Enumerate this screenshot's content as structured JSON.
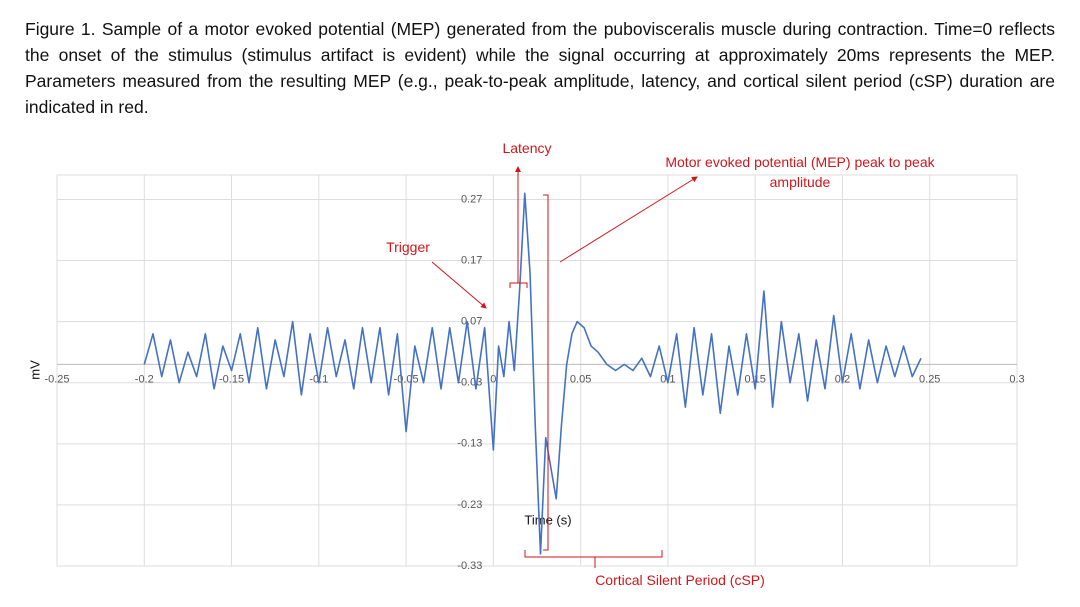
{
  "caption": "Figure 1. Sample of a motor evoked potential (MEP) generated from the pubovisceralis muscle during contraction. Time=0 reflects the onset of the stimulus (stimulus artifact is evident) while the signal occurring at approximately 20ms represents the MEP. Parameters measured from the resulting MEP (e.g., peak-to-peak amplitude, latency, and cortical silent period (cSP) duration are indicated in red.",
  "chart_data": {
    "type": "line",
    "x_label": "Time (s)",
    "y_label": "mV",
    "annotations": [
      "Latency",
      "Motor evoked potential (MEP) peak to peak amplitude",
      "Trigger",
      "Cortical Silent Period (cSP)"
    ],
    "color": "#4472c4",
    "grid": true,
    "xlim": [
      -0.25,
      0.3
    ],
    "xticks": [
      -0.25,
      -0.2,
      -0.15,
      -0.1,
      -0.05,
      0,
      0.05,
      0.1,
      0.15,
      0.2,
      0.25,
      0.3
    ],
    "ylim": [
      -0.33,
      0.31
    ],
    "yticks": [
      0.27,
      0.17,
      0.07,
      -0.03,
      -0.13,
      -0.23,
      -0.33
    ],
    "x": [
      -0.2,
      -0.195,
      -0.19,
      -0.185,
      -0.18,
      -0.175,
      -0.17,
      -0.165,
      -0.16,
      -0.155,
      -0.15,
      -0.145,
      -0.14,
      -0.135,
      -0.13,
      -0.125,
      -0.12,
      -0.115,
      -0.11,
      -0.105,
      -0.1,
      -0.095,
      -0.09,
      -0.085,
      -0.08,
      -0.075,
      -0.07,
      -0.065,
      -0.06,
      -0.055,
      -0.05,
      -0.045,
      -0.04,
      -0.035,
      -0.03,
      -0.025,
      -0.02,
      -0.015,
      -0.01,
      -0.005,
      0,
      0.003,
      0.006,
      0.009,
      0.012,
      0.015,
      0.018,
      0.021,
      0.024,
      0.027,
      0.03,
      0.033,
      0.036,
      0.039,
      0.042,
      0.045,
      0.048,
      0.052,
      0.056,
      0.06,
      0.065,
      0.07,
      0.075,
      0.08,
      0.085,
      0.09,
      0.095,
      0.1,
      0.105,
      0.11,
      0.115,
      0.12,
      0.125,
      0.13,
      0.135,
      0.14,
      0.145,
      0.15,
      0.155,
      0.16,
      0.165,
      0.17,
      0.175,
      0.18,
      0.185,
      0.19,
      0.195,
      0.2,
      0.205,
      0.21,
      0.215,
      0.22,
      0.225,
      0.23,
      0.235,
      0.24,
      0.245
    ],
    "values": [
      0.0,
      0.05,
      -0.02,
      0.04,
      -0.03,
      0.02,
      -0.02,
      0.05,
      -0.04,
      0.03,
      -0.01,
      0.05,
      -0.03,
      0.06,
      -0.04,
      0.04,
      -0.02,
      0.07,
      -0.05,
      0.05,
      -0.03,
      0.06,
      -0.02,
      0.04,
      -0.04,
      0.06,
      -0.03,
      0.06,
      -0.05,
      0.05,
      -0.11,
      0.03,
      -0.03,
      0.06,
      -0.04,
      0.06,
      -0.03,
      0.07,
      -0.04,
      0.06,
      -0.14,
      0.03,
      -0.02,
      0.07,
      -0.01,
      0.12,
      0.28,
      0.15,
      -0.1,
      -0.31,
      -0.12,
      -0.17,
      -0.22,
      -0.1,
      0.0,
      0.05,
      0.07,
      0.06,
      0.03,
      0.02,
      0.0,
      -0.01,
      0.0,
      -0.01,
      0.01,
      -0.02,
      0.03,
      -0.03,
      0.05,
      -0.07,
      0.06,
      -0.05,
      0.05,
      -0.08,
      0.03,
      -0.05,
      0.05,
      -0.04,
      0.12,
      -0.07,
      0.07,
      -0.03,
      0.05,
      -0.06,
      0.04,
      -0.04,
      0.08,
      -0.03,
      0.05,
      -0.04,
      0.04,
      -0.03,
      0.03,
      -0.02,
      0.03,
      -0.02,
      0.01
    ]
  }
}
